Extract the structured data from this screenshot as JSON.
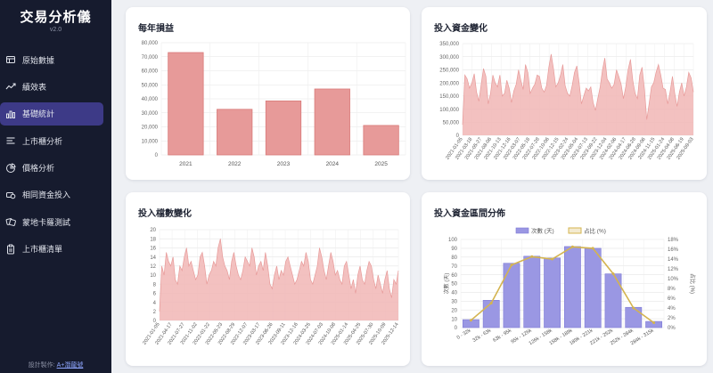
{
  "sidebar": {
    "title": "交易分析儀",
    "version": "v2.0",
    "items": [
      {
        "label": "原始數據",
        "icon": "table-icon",
        "active": false
      },
      {
        "label": "績效表",
        "icon": "trend-icon",
        "active": false
      },
      {
        "label": "基礎統計",
        "icon": "bar-chart-icon",
        "active": true
      },
      {
        "label": "上市櫃分析",
        "icon": "list-icon",
        "active": false
      },
      {
        "label": "價格分析",
        "icon": "pie-icon",
        "active": false
      },
      {
        "label": "相同資金投入",
        "icon": "coins-icon",
        "active": false
      },
      {
        "label": "蒙地卡羅測試",
        "icon": "dice-icon",
        "active": false
      },
      {
        "label": "上市櫃清單",
        "icon": "clipboard-icon",
        "active": false
      }
    ],
    "footer_prefix": "設計製作: ",
    "footer_link": "A+潛龍號"
  },
  "colors": {
    "bar_fill": "#e79a99",
    "bar_stroke": "#d97a79",
    "area_fill": "#f1b6b5",
    "area_stroke": "#e79a99",
    "dist_bar": "#9a97e3",
    "dist_line": "#d4b44f",
    "active_nav": "#3d3a87"
  },
  "chart_data": [
    {
      "title": "每年損益",
      "type": "bar",
      "categories": [
        "2021",
        "2022",
        "2023",
        "2024",
        "2025"
      ],
      "values": [
        73000,
        32500,
        38500,
        47000,
        21000
      ],
      "ylim": [
        0,
        80000
      ],
      "yticks": [
        "0",
        "10,000",
        "20,000",
        "30,000",
        "40,000",
        "50,000",
        "60,000",
        "70,000",
        "80,000"
      ],
      "xlabel": "",
      "ylabel": "",
      "grid": true
    },
    {
      "title": "投入資金變化",
      "type": "area",
      "ylim": [
        0,
        350000
      ],
      "yticks": [
        "0",
        "50,000",
        "100,000",
        "150,000",
        "200,000",
        "250,000",
        "300,000",
        "350,000"
      ],
      "xticks": [
        "2021-01-05",
        "2021-03-18",
        "2021-05-27",
        "2021-08-06",
        "2021-10-13",
        "2021-12-16",
        "2022-03-07",
        "2022-05-18",
        "2022-07-28",
        "2022-10-06",
        "2022-12-15",
        "2023-02-24",
        "2023-05-04",
        "2023-07-13",
        "2023-09-22",
        "2023-12-04",
        "2024-02-06",
        "2024-04-17",
        "2024-06-28",
        "2024-09-06",
        "2024-11-15",
        "2025-01-24",
        "2025-04-08",
        "2025-06-19",
        "2025-09-03"
      ],
      "values": [
        40000,
        230000,
        215000,
        180000,
        200000,
        235000,
        165000,
        130000,
        195000,
        255000,
        225000,
        120000,
        160000,
        230000,
        200000,
        185000,
        230000,
        150000,
        160000,
        210000,
        180000,
        125000,
        170000,
        195000,
        250000,
        210000,
        175000,
        270000,
        240000,
        160000,
        180000,
        195000,
        230000,
        225000,
        180000,
        165000,
        190000,
        260000,
        310000,
        255000,
        185000,
        200000,
        230000,
        270000,
        190000,
        160000,
        150000,
        190000,
        240000,
        265000,
        200000,
        120000,
        150000,
        180000,
        170000,
        185000,
        125000,
        95000,
        140000,
        185000,
        250000,
        295000,
        215000,
        200000,
        180000,
        195000,
        250000,
        225000,
        195000,
        140000,
        185000,
        250000,
        290000,
        210000,
        160000,
        140000,
        230000,
        260000,
        175000,
        60000,
        120000,
        185000,
        200000,
        240000,
        270000,
        230000,
        180000,
        175000,
        120000,
        165000,
        225000,
        160000,
        110000,
        165000,
        200000,
        150000,
        185000,
        240000,
        220000,
        165000
      ],
      "xlabel": "",
      "ylabel": "",
      "grid": true
    },
    {
      "title": "投入檔數變化",
      "type": "area",
      "ylim": [
        0,
        20
      ],
      "yticks": [
        "0",
        "2",
        "4",
        "6",
        "8",
        "10",
        "12",
        "14",
        "16",
        "18",
        "20"
      ],
      "xticks": [
        "2021-01-05",
        "2021-04-17",
        "2021-07-27",
        "2021-11-02",
        "2022-01-22",
        "2022-05-23",
        "2022-08-29",
        "2022-12-07",
        "2023-03-17",
        "2023-06-26",
        "2023-09-11",
        "2023-12-16",
        "2024-03-25",
        "2024-07-03",
        "2024-10-08",
        "2025-01-14",
        "2025-04-25",
        "2025-07-30",
        "2025-10-09",
        "2025-12-14"
      ],
      "values": [
        2,
        12,
        10,
        15,
        13,
        12,
        14,
        9,
        8,
        12,
        11,
        14,
        16,
        12,
        13,
        11,
        9,
        10,
        14,
        15,
        12,
        8,
        10,
        11,
        13,
        12,
        16,
        18,
        14,
        12,
        11,
        9,
        13,
        15,
        12,
        10,
        9,
        11,
        14,
        13,
        12,
        16,
        14,
        10,
        12,
        13,
        11,
        15,
        12,
        8,
        7,
        10,
        12,
        9,
        11,
        10,
        13,
        14,
        12,
        10,
        8,
        9,
        11,
        13,
        12,
        15,
        13,
        9,
        8,
        10,
        12,
        16,
        14,
        11,
        9,
        12,
        15,
        13,
        10,
        11,
        9,
        8,
        12,
        13,
        10,
        7,
        9,
        6,
        10,
        12,
        9,
        8,
        11,
        13,
        12,
        9,
        7,
        10,
        8,
        6,
        9,
        11,
        7,
        5,
        9,
        8,
        11
      ],
      "xlabel": "",
      "ylabel": "",
      "grid": true
    },
    {
      "title": "投入資金區間分佈",
      "type": "bar",
      "legend": [
        "次數 (天)",
        "占比 (%)"
      ],
      "legend_position": "top",
      "categories": [
        "0 - 32k",
        "32k - 63k",
        "63k - 95k",
        "95k - 126k",
        "126k - 158k",
        "158k - 189k",
        "189k - 221k",
        "221k - 252k",
        "252k - 284k",
        "284k - 315k"
      ],
      "series": [
        {
          "name": "次數 (天)",
          "type": "bar",
          "values": [
            9,
            31,
            73,
            81,
            79,
            92,
            90,
            61,
            23,
            7
          ]
        },
        {
          "name": "占比 (%)",
          "type": "line",
          "values": [
            1.5,
            5,
            12.8,
            14.5,
            14,
            16.5,
            16.2,
            11,
            4,
            1
          ]
        }
      ],
      "ylim": [
        0,
        100
      ],
      "y2lim": [
        0,
        18
      ],
      "yticks": [
        "0",
        "10",
        "20",
        "30",
        "40",
        "50",
        "60",
        "70",
        "80",
        "90",
        "100"
      ],
      "y2ticks": [
        "0%",
        "2%",
        "4%",
        "6%",
        "8%",
        "10%",
        "12%",
        "14%",
        "16%",
        "18%"
      ],
      "ylabel": "次數 (天)",
      "y2label": "占比 (%)",
      "xlabel": "",
      "grid": true
    }
  ]
}
